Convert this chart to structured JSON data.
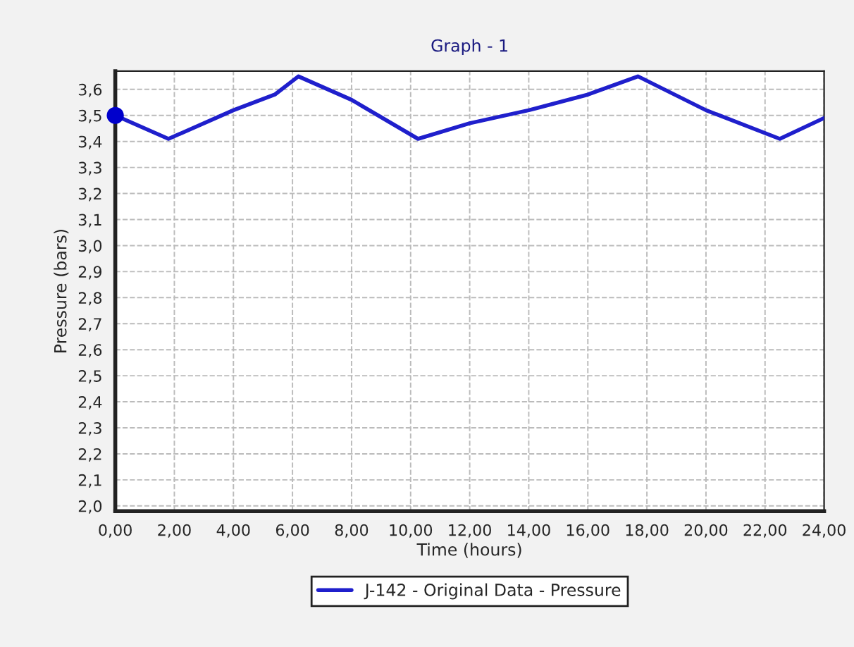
{
  "chart_data": {
    "type": "line",
    "title": "Graph - 1",
    "xlabel": "Time (hours)",
    "ylabel": "Pressure (bars)",
    "series": [
      {
        "name": "J-142 - Original Data - Pressure",
        "color": "#1f1fcc",
        "x": [
          0,
          1.8,
          4,
          5.4,
          6.2,
          8,
          10.25,
          12,
          14,
          16,
          17.7,
          20,
          22.5,
          24
        ],
        "values": [
          3.5,
          3.41,
          3.52,
          3.58,
          3.65,
          3.56,
          3.41,
          3.47,
          3.52,
          3.58,
          3.65,
          3.52,
          3.41,
          3.49
        ]
      },
      {
        "type": "scatter",
        "marker": "circle",
        "color": "#0000cc",
        "x": [
          0
        ],
        "values": [
          3.5
        ]
      }
    ],
    "xlim": [
      0,
      24
    ],
    "ylim": [
      1.98,
      3.67
    ],
    "xticks": [
      {
        "value": 0,
        "label": "0,00"
      },
      {
        "value": 2,
        "label": "2,00"
      },
      {
        "value": 4,
        "label": "4,00"
      },
      {
        "value": 6,
        "label": "6,00"
      },
      {
        "value": 8,
        "label": "8,00"
      },
      {
        "value": 10,
        "label": "10,00"
      },
      {
        "value": 12,
        "label": "12,00"
      },
      {
        "value": 14,
        "label": "14,00"
      },
      {
        "value": 16,
        "label": "16,00"
      },
      {
        "value": 18,
        "label": "18,00"
      },
      {
        "value": 20,
        "label": "20,00"
      },
      {
        "value": 22,
        "label": "22,00"
      },
      {
        "value": 24,
        "label": "24,00"
      }
    ],
    "yticks": [
      {
        "value": 2.0,
        "label": "2,0"
      },
      {
        "value": 2.1,
        "label": "2,1"
      },
      {
        "value": 2.2,
        "label": "2,2"
      },
      {
        "value": 2.3,
        "label": "2,3"
      },
      {
        "value": 2.4,
        "label": "2,4"
      },
      {
        "value": 2.5,
        "label": "2,5"
      },
      {
        "value": 2.6,
        "label": "2,6"
      },
      {
        "value": 2.7,
        "label": "2,7"
      },
      {
        "value": 2.8,
        "label": "2,8"
      },
      {
        "value": 2.9,
        "label": "2,9"
      },
      {
        "value": 3.0,
        "label": "3,0"
      },
      {
        "value": 3.1,
        "label": "3,1"
      },
      {
        "value": 3.2,
        "label": "3,2"
      },
      {
        "value": 3.3,
        "label": "3,3"
      },
      {
        "value": 3.4,
        "label": "3,4"
      },
      {
        "value": 3.5,
        "label": "3,5"
      },
      {
        "value": 3.6,
        "label": "3,6"
      }
    ],
    "grid": true,
    "legend": "bottom",
    "line_style": "solid"
  }
}
